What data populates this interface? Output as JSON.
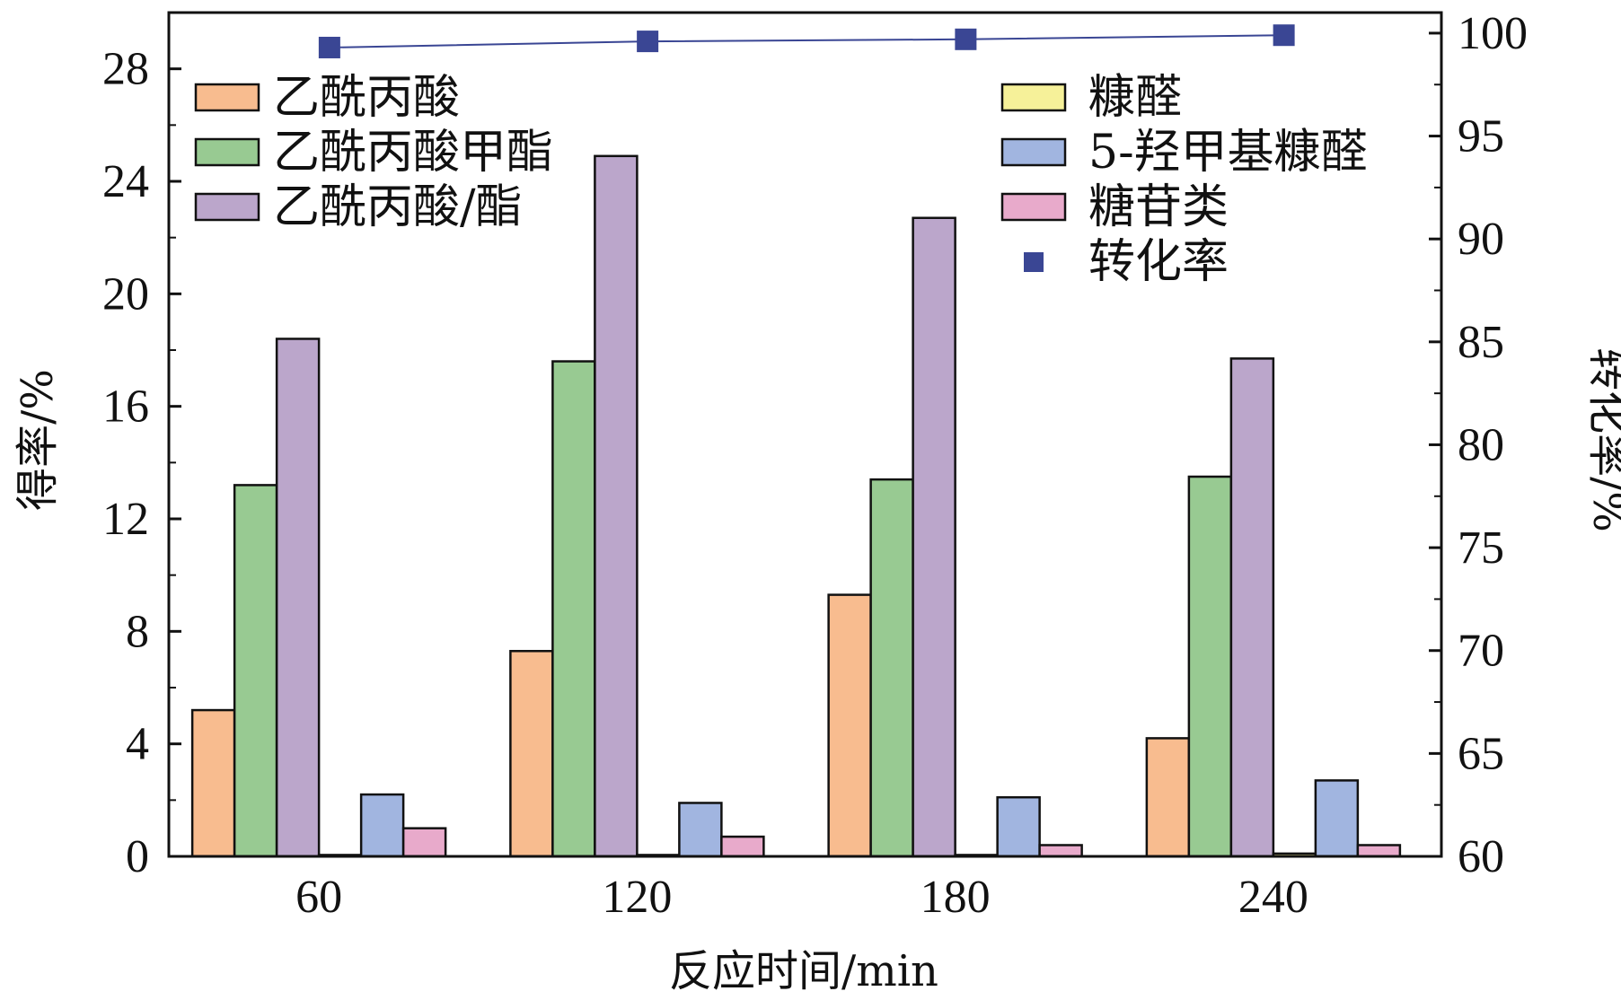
{
  "chart_data": {
    "type": "bar",
    "xlabel": "反应时间/min",
    "ylabel": "得率/%",
    "y2label": "转化率/%",
    "categories": [
      "60",
      "120",
      "180",
      "240"
    ],
    "ylim": [
      0,
      30
    ],
    "yticks": [
      0,
      4,
      8,
      12,
      16,
      20,
      24,
      28
    ],
    "y2lim": [
      60,
      101
    ],
    "y2ticks": [
      60,
      65,
      70,
      75,
      80,
      85,
      90,
      95,
      100
    ],
    "grid": false,
    "series": [
      {
        "name": "乙酰丙酸",
        "color": "#F8BC8F",
        "values": [
          5.2,
          7.3,
          9.3,
          4.2
        ]
      },
      {
        "name": "乙酰丙酸甲酯",
        "color": "#98CA92",
        "values": [
          13.2,
          17.6,
          13.4,
          13.5
        ]
      },
      {
        "name": "乙酰丙酸/酯",
        "color": "#BBA6CB",
        "values": [
          18.4,
          24.9,
          22.7,
          17.7
        ]
      },
      {
        "name": "糠醛",
        "color": "#F6F199",
        "values": [
          0.05,
          0.05,
          0.05,
          0.1
        ]
      },
      {
        "name": "5-羟甲基糠醛",
        "color": "#A1B5E0",
        "values": [
          2.2,
          1.9,
          2.1,
          2.7
        ]
      },
      {
        "name": "糖苷类",
        "color": "#E8AACB",
        "values": [
          1.0,
          0.7,
          0.4,
          0.4
        ]
      }
    ],
    "line_series": {
      "name": "转化率",
      "axis": "right",
      "color": "#3A4694",
      "values": [
        99.3,
        99.6,
        99.7,
        99.9
      ]
    },
    "legend_left": [
      "乙酰丙酸",
      "乙酰丙酸甲酯",
      "乙酰丙酸/酯"
    ],
    "legend_right": [
      "糠醛",
      "5-羟甲基糠醛",
      "糖苷类",
      "转化率"
    ]
  }
}
